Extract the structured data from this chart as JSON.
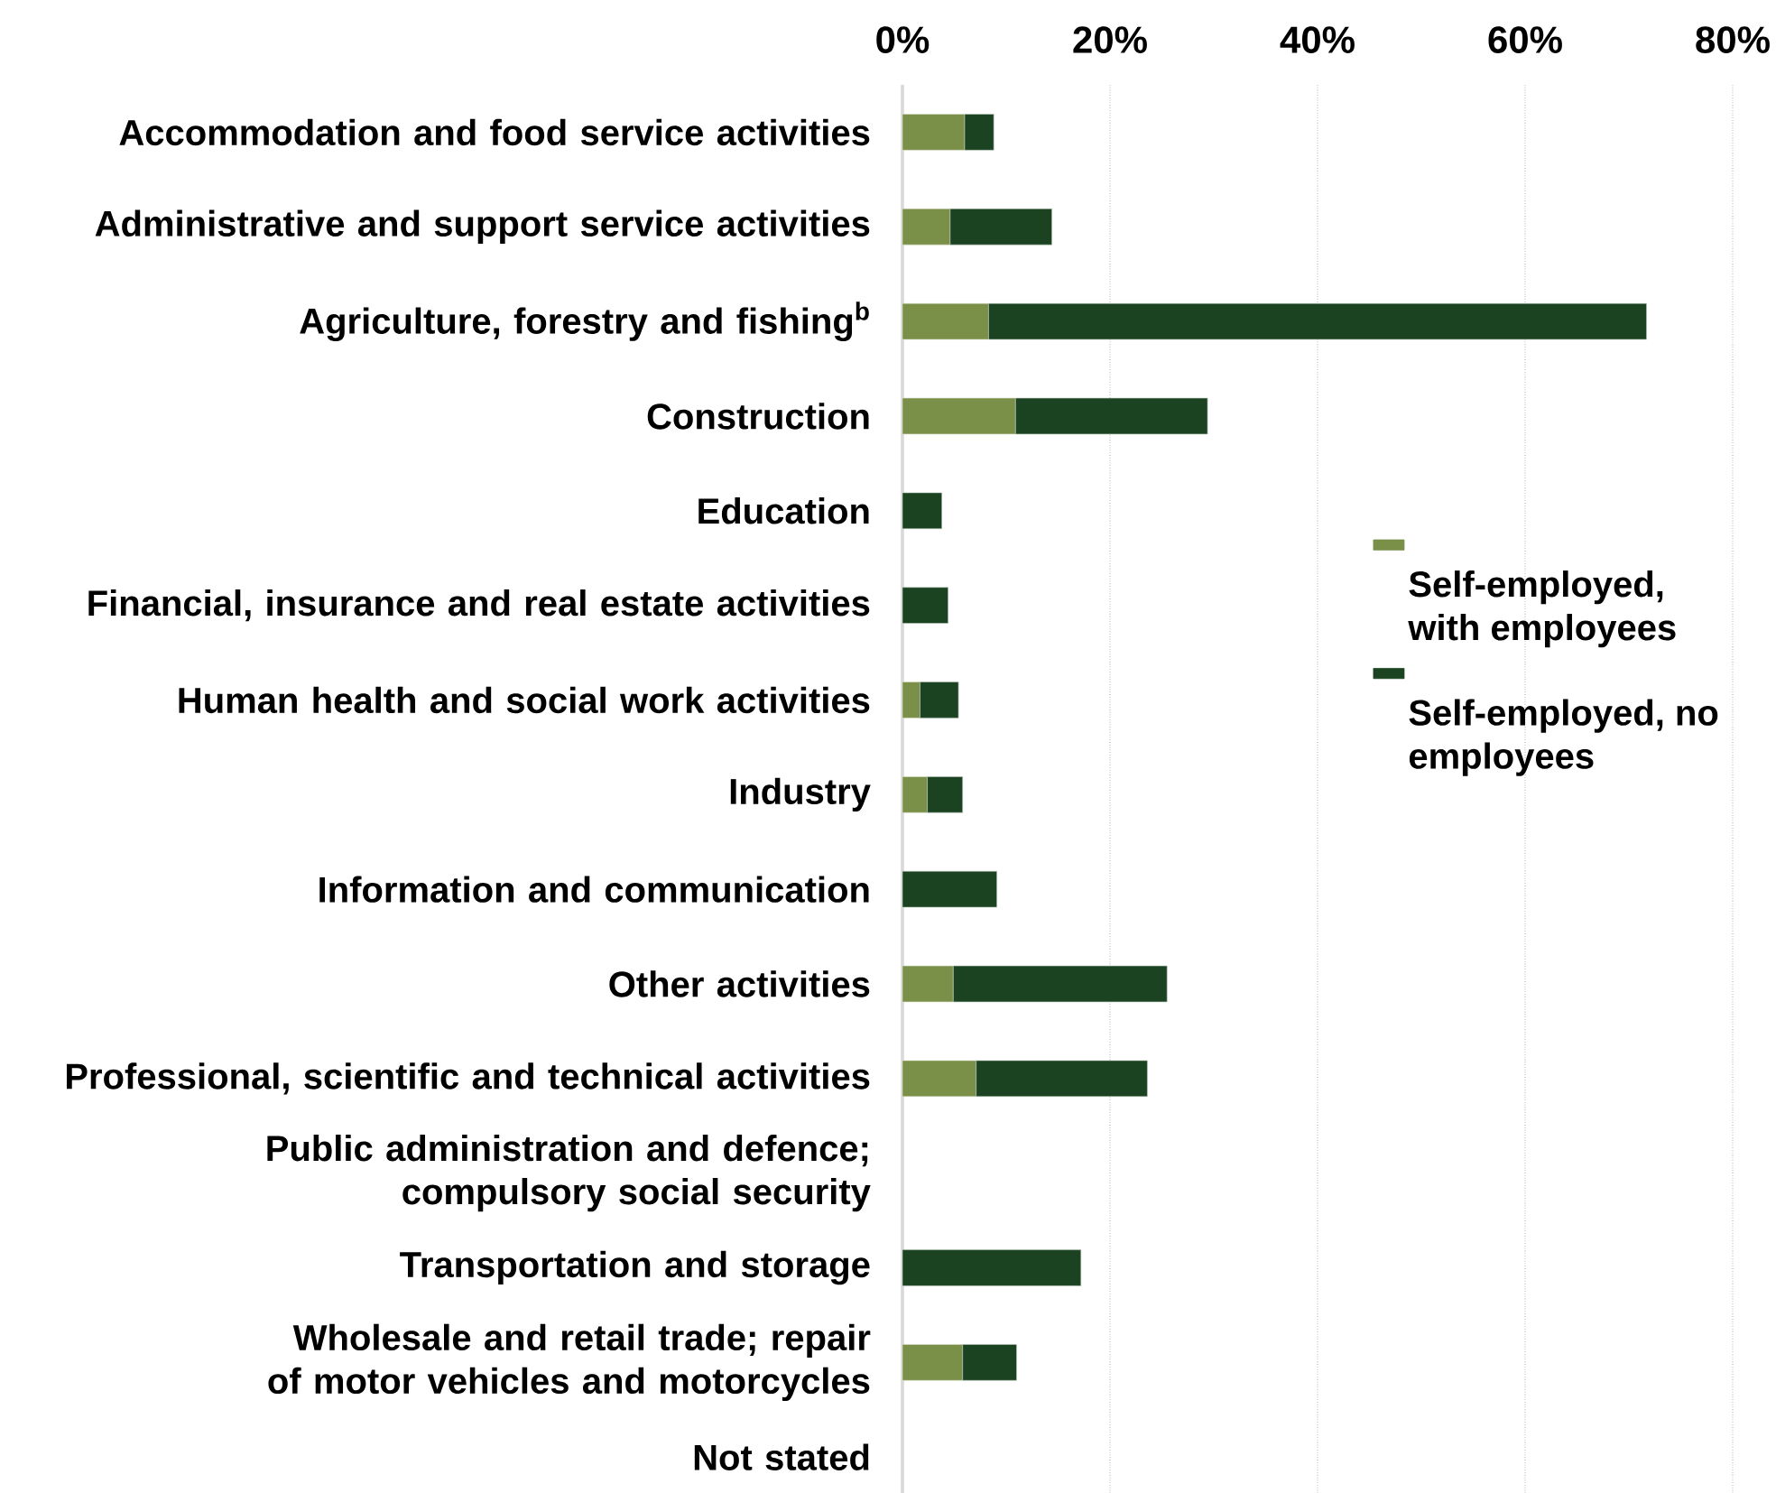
{
  "chart_data": {
    "type": "bar",
    "orientation": "horizontal",
    "stacked": true,
    "categories": [
      "Accommodation and food service activities",
      "Administrative and support service activities",
      "Agriculture, forestry and fishing$^{b}$",
      "Construction",
      "Education",
      "Financial, insurance and real estate activities",
      "Human health and social work activities",
      "Industry",
      "Information and communication",
      "Other activities",
      "Professional, scientific and technical activities",
      "Public administration and defence; compulsory social security",
      "Transportation and storage",
      "Wholesale and retail trade; repair of motor vehicles and motorcycles",
      "Not stated"
    ],
    "series": [
      {
        "name": "Self-employed, with employees",
        "color": "#7a8f48",
        "values": [
          6.0,
          4.6,
          8.3,
          10.9,
          null,
          null,
          1.7,
          2.4,
          null,
          4.9,
          7.1,
          null,
          null,
          5.8,
          null
        ]
      },
      {
        "name": "Self-employed, no employees",
        "color": "#1b4321",
        "values": [
          2.8,
          9.8,
          63.4,
          18.5,
          3.8,
          4.4,
          3.7,
          3.4,
          9.1,
          20.6,
          16.5,
          null,
          17.2,
          5.2,
          null
        ]
      }
    ],
    "xlim": [
      0,
      80
    ],
    "xticks": [
      {
        "value": 0,
        "label": "0%"
      },
      {
        "value": 20,
        "label": "20%"
      },
      {
        "value": 40,
        "label": "40%"
      },
      {
        "value": 60,
        "label": "60%"
      },
      {
        "value": 80,
        "label": "80%"
      }
    ],
    "grid": "x",
    "legend": "right"
  }
}
